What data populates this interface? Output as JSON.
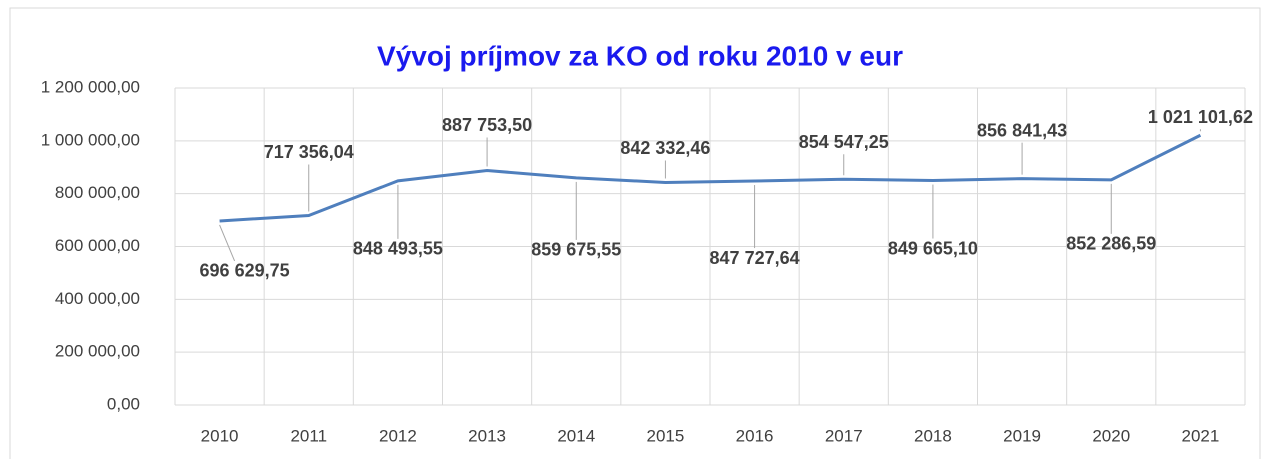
{
  "chart_data": {
    "type": "line",
    "title": "Vývoj príjmov za KO od roku 2010 v eur",
    "categories": [
      "2010",
      "2011",
      "2012",
      "2013",
      "2014",
      "2015",
      "2016",
      "2017",
      "2018",
      "2019",
      "2020",
      "2021"
    ],
    "series": [
      {
        "name": null,
        "color": "#4f7fbd",
        "values": [
          696629.75,
          717356.04,
          848493.55,
          887753.5,
          859675.55,
          842332.46,
          847727.64,
          854547.25,
          849665.1,
          856841.43,
          852286.59,
          1021101.62
        ],
        "value_labels": [
          "696 629,75",
          "717 356,04",
          "848 493,55",
          "887 753,50",
          "859 675,55",
          "842 332,46",
          "847 727,64",
          "854 547,25",
          "849 665,10",
          "856 841,43",
          "852 286,59",
          "1 021 101,62"
        ]
      }
    ],
    "ylim": [
      0,
      1200000
    ],
    "yticks": [
      {
        "value": 0,
        "label": "0,00"
      },
      {
        "value": 200000,
        "label": "200 000,00"
      },
      {
        "value": 400000,
        "label": "400 000,00"
      },
      {
        "value": 600000,
        "label": "600 000,00"
      },
      {
        "value": 800000,
        "label": "800 000,00"
      },
      {
        "value": 1000000,
        "label": "1 000 000,00"
      },
      {
        "value": 1200000,
        "label": "1 200 000,00"
      }
    ],
    "grid": true
  }
}
